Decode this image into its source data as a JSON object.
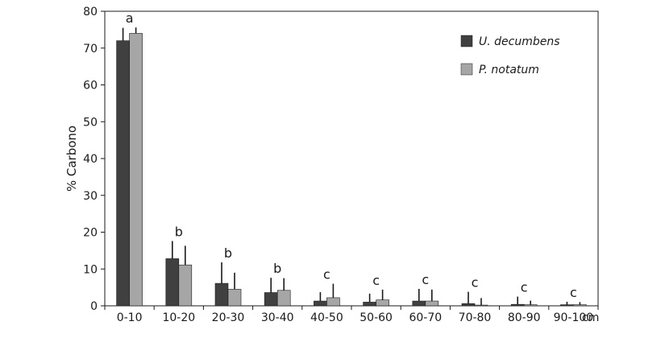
{
  "chart_data": {
    "type": "bar",
    "title": "",
    "xlabel": "",
    "x_unit": "cm",
    "ylabel": "% Carbono",
    "ylim": [
      0,
      80
    ],
    "y_ticks": [
      0,
      10,
      20,
      30,
      40,
      50,
      60,
      70,
      80
    ],
    "grid": false,
    "legend_position": "top-right",
    "categories": [
      "0-10",
      "10-20",
      "20-30",
      "30-40",
      "40-50",
      "50-60",
      "60-70",
      "70-80",
      "80-90",
      "90-100"
    ],
    "series": [
      {
        "name": "U. decumbens",
        "color": "#404040",
        "values": [
          72.0,
          12.8,
          6.1,
          3.6,
          1.3,
          1.0,
          1.3,
          0.6,
          0.4,
          0.3
        ],
        "error": [
          3.5,
          4.8,
          5.7,
          4.0,
          2.4,
          2.3,
          3.3,
          3.2,
          2.1,
          0.8
        ]
      },
      {
        "name": "P. notatum",
        "color": "#a6a6a6",
        "values": [
          74.0,
          11.1,
          4.5,
          4.2,
          2.2,
          1.6,
          1.3,
          0.2,
          0.3,
          0.3
        ],
        "error": [
          1.6,
          5.2,
          4.5,
          3.3,
          3.8,
          2.8,
          3.1,
          1.9,
          1.1,
          0.7
        ]
      }
    ],
    "annotations": [
      "a",
      "b",
      "b",
      "b",
      "c",
      "c",
      "c",
      "c",
      "c",
      "c"
    ]
  }
}
